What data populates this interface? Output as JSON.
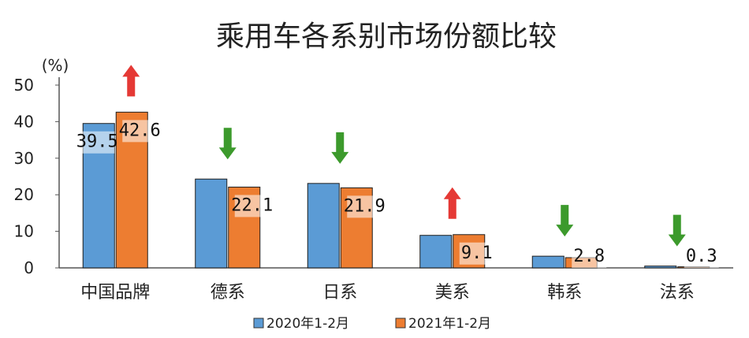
{
  "chart_data": {
    "type": "bar",
    "title": "乘用车各系别市场份额比较",
    "ylabel": "(%)",
    "ylim": [
      0,
      50
    ],
    "yticks": [
      0,
      10,
      20,
      30,
      40,
      50
    ],
    "categories": [
      "中国品牌",
      "德系",
      "日系",
      "美系",
      "韩系",
      "法系"
    ],
    "series": [
      {
        "name": "2020年1-2月",
        "color": "#5B9BD5",
        "values": [
          39.5,
          24.3,
          23.1,
          8.9,
          3.2,
          0.5
        ],
        "labels": [
          "39.5",
          "",
          "",
          "",
          "",
          ""
        ]
      },
      {
        "name": "2021年1-2月",
        "color": "#ED7D31",
        "values": [
          42.6,
          22.1,
          21.9,
          9.1,
          2.8,
          0.3
        ],
        "labels": [
          "42.6",
          "22.1",
          "21.9",
          "9.1",
          "2.8",
          "0.3"
        ]
      }
    ],
    "trend_arrows": [
      "up",
      "down",
      "down",
      "up",
      "down",
      "down"
    ],
    "arrow_colors": {
      "up": "#E53935",
      "down": "#3C9A2C"
    },
    "legend_position": "bottom",
    "grid": false
  }
}
